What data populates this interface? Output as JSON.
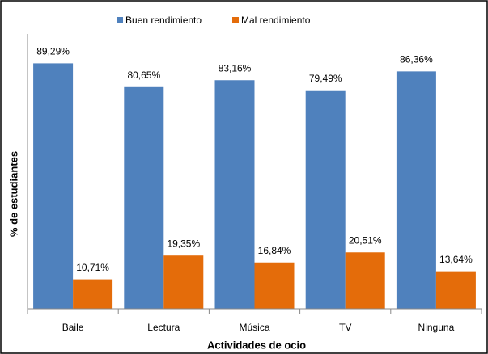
{
  "chart_data": {
    "type": "bar",
    "x_label": "Actividades de ocio",
    "y_label": "% de estudiantes",
    "categories": [
      "Baile",
      "Lectura",
      "Música",
      "TV",
      "Ninguna"
    ],
    "series": [
      {
        "name": "Buen rendimiento",
        "color": "#4f81bd",
        "values": [
          89.29,
          80.65,
          83.16,
          79.49,
          86.36
        ],
        "value_labels": [
          "89,29%",
          "80,65%",
          "83,16%",
          "79,49%",
          "86,36%"
        ]
      },
      {
        "name": "Mal rendimiento",
        "color": "#e46c0a",
        "values": [
          10.71,
          19.35,
          16.84,
          20.51,
          13.64
        ],
        "value_labels": [
          "10,71%",
          "19,35%",
          "16,84%",
          "20,51%",
          "13,64%"
        ]
      }
    ],
    "ylim": [
      0,
      100
    ],
    "legend": "top"
  }
}
